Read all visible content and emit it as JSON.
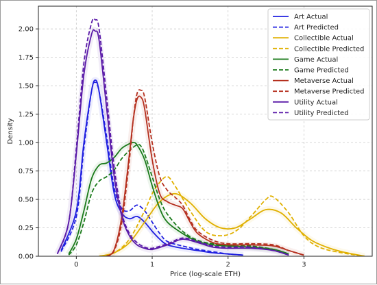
{
  "chart_data": {
    "type": "line",
    "title": "",
    "xlabel": "Price (log-scale ETH)",
    "ylabel": "Density",
    "xlim": [
      -0.5,
      3.9
    ],
    "ylim": [
      0,
      2.2
    ],
    "xticks": [
      0,
      1,
      2,
      3
    ],
    "yticks": [
      0.0,
      0.25,
      0.5,
      0.75,
      1.0,
      1.25,
      1.5,
      1.75,
      2.0
    ],
    "ytick_labels": [
      "0.00",
      "0.25",
      "0.50",
      "0.75",
      "1.00",
      "1.25",
      "1.50",
      "1.75",
      "2.00"
    ],
    "xtick_labels": [
      "0",
      "1",
      "2",
      "3"
    ],
    "grid": true,
    "legend_position": "top-right",
    "series": [
      {
        "name": "Art Actual",
        "color": "#1f1fe0",
        "style": "solid",
        "x": [
          -0.2,
          0.0,
          0.1,
          0.2,
          0.25,
          0.3,
          0.4,
          0.5,
          0.6,
          0.7,
          0.8,
          0.9,
          1.0,
          1.1,
          1.2,
          1.4,
          1.6,
          1.8,
          2.0,
          2.2
        ],
        "y": [
          0.05,
          0.4,
          1.0,
          1.45,
          1.55,
          1.45,
          1.0,
          0.55,
          0.38,
          0.33,
          0.35,
          0.3,
          0.22,
          0.15,
          0.1,
          0.07,
          0.05,
          0.03,
          0.02,
          0.01
        ]
      },
      {
        "name": "Art Predicted",
        "color": "#1f1fe0",
        "style": "dashed",
        "x": [
          -0.2,
          0.0,
          0.1,
          0.2,
          0.25,
          0.3,
          0.4,
          0.5,
          0.6,
          0.7,
          0.8,
          0.9,
          1.0,
          1.1,
          1.2,
          1.4,
          1.6,
          1.8,
          2.0,
          2.2
        ],
        "y": [
          0.04,
          0.35,
          0.95,
          1.45,
          1.53,
          1.45,
          1.05,
          0.6,
          0.42,
          0.4,
          0.45,
          0.4,
          0.3,
          0.2,
          0.13,
          0.09,
          0.06,
          0.04,
          0.02,
          0.01
        ]
      },
      {
        "name": "Collectible Actual",
        "color": "#e0b000",
        "style": "solid",
        "x": [
          0.3,
          0.5,
          0.7,
          0.9,
          1.1,
          1.3,
          1.5,
          1.7,
          1.9,
          2.1,
          2.3,
          2.5,
          2.7,
          2.9,
          3.1,
          3.3,
          3.5,
          3.8
        ],
        "y": [
          0.0,
          0.03,
          0.12,
          0.3,
          0.48,
          0.55,
          0.47,
          0.33,
          0.25,
          0.25,
          0.33,
          0.41,
          0.38,
          0.25,
          0.14,
          0.08,
          0.04,
          0.0
        ]
      },
      {
        "name": "Collectible Predicted",
        "color": "#e0b000",
        "style": "dashed",
        "x": [
          0.3,
          0.5,
          0.7,
          0.9,
          1.0,
          1.1,
          1.2,
          1.3,
          1.5,
          1.7,
          1.9,
          2.1,
          2.3,
          2.5,
          2.6,
          2.8,
          3.0,
          3.2,
          3.5,
          3.8
        ],
        "y": [
          0.0,
          0.03,
          0.15,
          0.4,
          0.55,
          0.65,
          0.7,
          0.62,
          0.4,
          0.22,
          0.18,
          0.22,
          0.35,
          0.5,
          0.52,
          0.38,
          0.18,
          0.08,
          0.03,
          0.0
        ]
      },
      {
        "name": "Game Actual",
        "color": "#1a7a1a",
        "style": "solid",
        "x": [
          -0.1,
          0.0,
          0.1,
          0.2,
          0.3,
          0.4,
          0.5,
          0.6,
          0.7,
          0.75,
          0.8,
          0.9,
          1.0,
          1.1,
          1.2,
          1.4,
          1.6,
          1.8,
          2.0,
          2.3,
          2.6,
          2.8
        ],
        "y": [
          0.02,
          0.15,
          0.4,
          0.68,
          0.8,
          0.82,
          0.87,
          0.95,
          0.99,
          1.0,
          0.98,
          0.85,
          0.62,
          0.42,
          0.3,
          0.2,
          0.13,
          0.1,
          0.09,
          0.08,
          0.06,
          0.02
        ]
      },
      {
        "name": "Game Predicted",
        "color": "#1a7a1a",
        "style": "dashed",
        "x": [
          -0.1,
          0.0,
          0.1,
          0.2,
          0.3,
          0.4,
          0.5,
          0.6,
          0.7,
          0.8,
          0.85,
          0.9,
          1.0,
          1.1,
          1.2,
          1.4,
          1.6,
          1.8,
          2.0,
          2.3,
          2.6,
          2.8
        ],
        "y": [
          0.01,
          0.1,
          0.3,
          0.55,
          0.66,
          0.7,
          0.76,
          0.86,
          0.93,
          0.98,
          0.97,
          0.9,
          0.7,
          0.5,
          0.37,
          0.22,
          0.14,
          0.11,
          0.1,
          0.09,
          0.06,
          0.02
        ]
      },
      {
        "name": "Metaverse Actual",
        "color": "#b5301f",
        "style": "solid",
        "x": [
          0.4,
          0.5,
          0.6,
          0.7,
          0.75,
          0.8,
          0.85,
          0.9,
          1.0,
          1.1,
          1.2,
          1.3,
          1.4,
          1.5,
          1.6,
          1.8,
          2.0,
          2.3,
          2.6,
          2.8,
          3.0
        ],
        "y": [
          0.0,
          0.06,
          0.35,
          0.9,
          1.2,
          1.38,
          1.4,
          1.3,
          0.85,
          0.55,
          0.48,
          0.45,
          0.42,
          0.3,
          0.2,
          0.12,
          0.1,
          0.1,
          0.09,
          0.05,
          0.01
        ]
      },
      {
        "name": "Metaverse Predicted",
        "color": "#b5301f",
        "style": "dashed",
        "x": [
          0.4,
          0.5,
          0.6,
          0.7,
          0.75,
          0.8,
          0.85,
          0.9,
          1.0,
          1.1,
          1.2,
          1.3,
          1.4,
          1.5,
          1.6,
          1.8,
          2.0,
          2.3,
          2.6,
          2.8,
          3.0
        ],
        "y": [
          0.0,
          0.05,
          0.3,
          0.85,
          1.2,
          1.43,
          1.46,
          1.4,
          1.0,
          0.7,
          0.58,
          0.52,
          0.45,
          0.32,
          0.22,
          0.14,
          0.11,
          0.11,
          0.1,
          0.05,
          0.01
        ]
      },
      {
        "name": "Utility Actual",
        "color": "#5a1aa8",
        "style": "solid",
        "x": [
          -0.25,
          -0.1,
          0.0,
          0.1,
          0.2,
          0.25,
          0.3,
          0.4,
          0.5,
          0.6,
          0.7,
          0.8,
          0.9,
          1.0,
          1.2,
          1.4,
          1.6,
          1.8,
          2.0,
          2.3,
          2.6,
          2.8
        ],
        "y": [
          0.02,
          0.3,
          0.9,
          1.6,
          1.95,
          1.98,
          1.9,
          1.3,
          0.7,
          0.35,
          0.18,
          0.1,
          0.07,
          0.06,
          0.1,
          0.15,
          0.12,
          0.08,
          0.07,
          0.07,
          0.05,
          0.01
        ]
      },
      {
        "name": "Utility Predicted",
        "color": "#5a1aa8",
        "style": "dashed",
        "x": [
          -0.25,
          -0.1,
          0.0,
          0.1,
          0.2,
          0.25,
          0.3,
          0.4,
          0.5,
          0.6,
          0.7,
          0.8,
          0.9,
          1.0,
          1.2,
          1.4,
          1.6,
          1.8,
          2.0,
          2.3,
          2.6,
          2.8
        ],
        "y": [
          0.02,
          0.3,
          0.95,
          1.7,
          2.05,
          2.08,
          2.0,
          1.4,
          0.78,
          0.38,
          0.2,
          0.12,
          0.08,
          0.07,
          0.11,
          0.16,
          0.13,
          0.09,
          0.08,
          0.08,
          0.05,
          0.01
        ]
      }
    ]
  }
}
